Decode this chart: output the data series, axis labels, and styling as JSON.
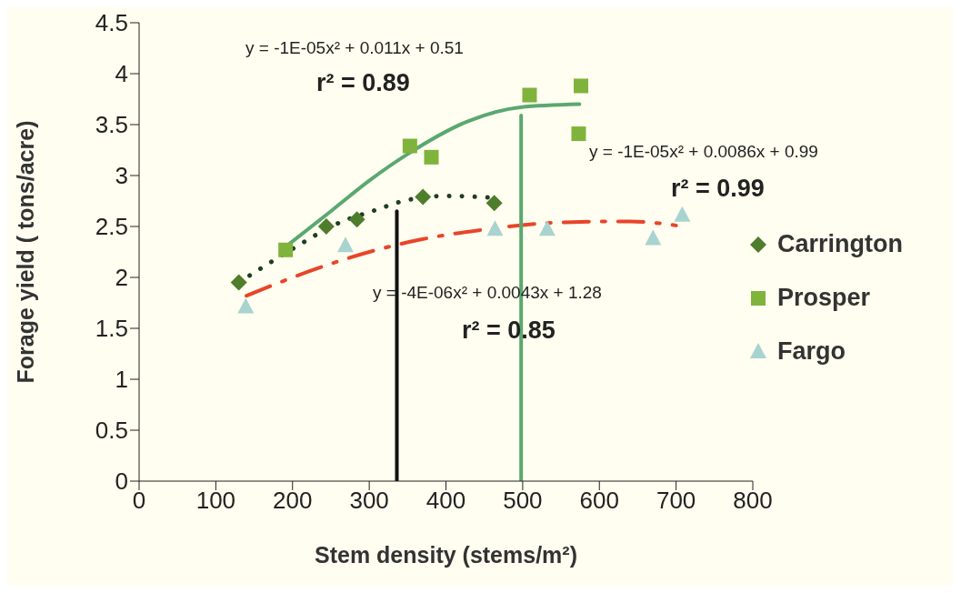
{
  "chart_data": {
    "type": "scatter",
    "xlabel": "Stem density (stems/m²)",
    "ylabel": "Forage yield ( tons/acre)",
    "xlim": [
      0,
      800
    ],
    "xticks": [
      0,
      100,
      200,
      300,
      400,
      500,
      600,
      700,
      800
    ],
    "ylim": [
      0,
      4.5
    ],
    "yticks": [
      0,
      0.5,
      1,
      1.5,
      2,
      2.5,
      3,
      3.5,
      4,
      4.5
    ],
    "grid": false,
    "legend": "right",
    "series": [
      {
        "name": "Carrington",
        "marker": "diamond",
        "color": "#4e7d2c",
        "x": [
          130,
          244,
          284,
          370,
          463
        ],
        "values": [
          1.95,
          2.5,
          2.57,
          2.79,
          2.73
        ]
      },
      {
        "name": "Prosper",
        "marker": "square",
        "color": "#80b33c",
        "x": [
          191,
          353,
          381,
          509,
          576,
          573
        ],
        "values": [
          2.27,
          3.29,
          3.18,
          3.79,
          3.88,
          3.41
        ]
      },
      {
        "name": "Fargo",
        "marker": "triangle",
        "color": "#a9d3cf",
        "x": [
          139,
          269,
          464,
          532,
          670,
          708
        ],
        "values": [
          1.71,
          2.31,
          2.47,
          2.47,
          2.38,
          2.61
        ]
      },
      {
        "type": "line",
        "marker": "none",
        "line_style": "dotted",
        "color": "#1f3d24",
        "x": [
          130,
          200,
          265,
          300,
          350,
          400,
          465
        ],
        "values": [
          1.95,
          2.28,
          2.55,
          2.64,
          2.76,
          2.8,
          2.78
        ]
      },
      {
        "type": "line",
        "marker": "none",
        "line_style": "solid",
        "color": "#5aa870",
        "x": [
          191,
          250,
          300,
          352,
          431,
          497,
          574
        ],
        "values": [
          2.3,
          2.65,
          2.95,
          3.22,
          3.54,
          3.67,
          3.7
        ]
      },
      {
        "type": "line",
        "marker": "none",
        "line_style": "dashed",
        "color": "#e8452a",
        "x": [
          140,
          233,
          300,
          366,
          450,
          550,
          640,
          700
        ],
        "values": [
          1.82,
          2.09,
          2.25,
          2.37,
          2.47,
          2.54,
          2.55,
          2.51
        ]
      },
      {
        "type": "line",
        "marker": "none",
        "line_style": "solid",
        "color": "#111111",
        "x": [
          336,
          336
        ],
        "values": [
          0,
          2.65
        ]
      },
      {
        "type": "line",
        "marker": "none",
        "line_style": "solid",
        "color": "#5aa870",
        "x": [
          498,
          498
        ],
        "values": [
          0,
          3.59
        ]
      }
    ],
    "annotations": [
      "y = -1E-05x² + 0.011x + 0.51",
      "r² = 0.89",
      "y = -1E-05x² + 0.0086x + 0.99",
      "r² = 0.99",
      "y = -4E-06x² + 0.0043x + 1.28",
      "r² = 0.85"
    ]
  }
}
